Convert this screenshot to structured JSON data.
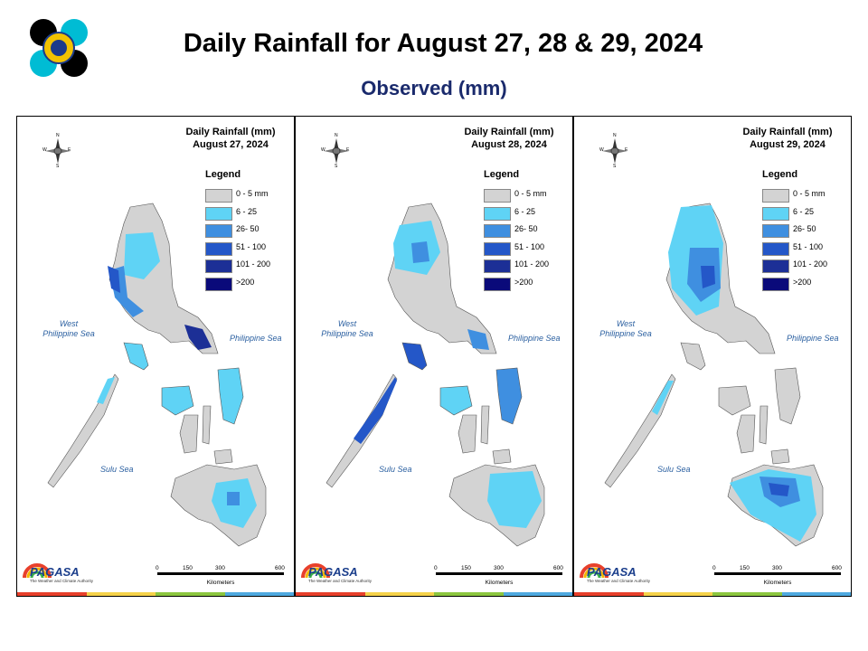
{
  "header": {
    "title": "Daily Rainfall for August 27, 28 & 29, 2024",
    "subtitle": "Observed (mm)"
  },
  "legend": {
    "title": "Legend",
    "items": [
      {
        "label": "0 - 5 mm",
        "color": "#d3d3d3"
      },
      {
        "label": "6 - 25",
        "color": "#5fd3f5"
      },
      {
        "label": "26- 50",
        "color": "#3f8fe0"
      },
      {
        "label": "51 - 100",
        "color": "#2457c8"
      },
      {
        "label": "101 - 200",
        "color": "#1c2f96"
      },
      {
        "label": ">200",
        "color": "#0a0a7a"
      }
    ]
  },
  "labels": {
    "west_sea_line1": "West",
    "west_sea_line2": "Philippine Sea",
    "east_sea": "Philippine Sea",
    "sulu_sea": "Sulu Sea",
    "scale_ticks": [
      "0",
      "150",
      "300",
      "600"
    ],
    "scale_unit": "Kilometers",
    "brand": "PAGASA",
    "brand_tagline": "The Weather and Climate Authority",
    "compass": [
      "N",
      "E",
      "S",
      "W"
    ]
  },
  "panels": [
    {
      "title_line1": "Daily Rainfall (mm)",
      "title_line2": "August 27, 2024"
    },
    {
      "title_line1": "Daily Rainfall (mm)",
      "title_line2": "August 28, 2024"
    },
    {
      "title_line1": "Daily Rainfall (mm)",
      "title_line2": "August 29, 2024"
    }
  ]
}
